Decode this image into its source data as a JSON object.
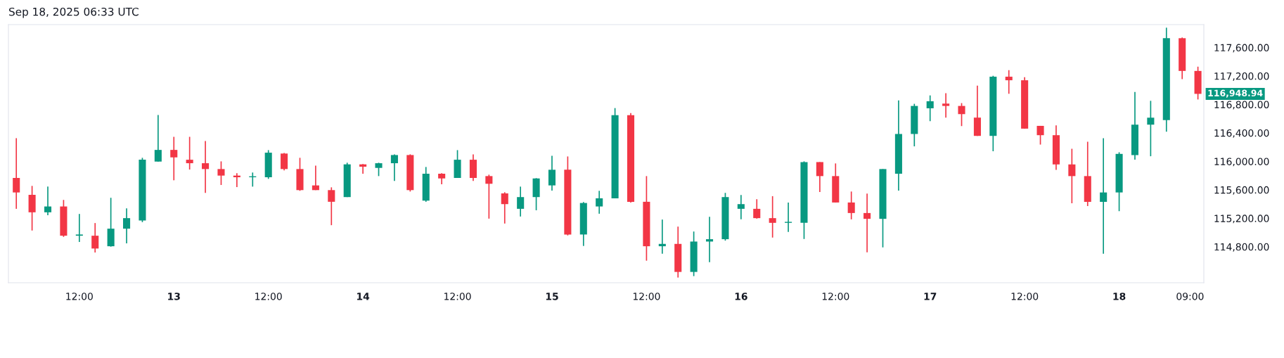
{
  "chart_data": {
    "type": "candlestick",
    "title": "Sep 18, 2025 06:33 UTC",
    "x": [
      "2025-09-12T04:00",
      "2025-09-12T06:00",
      "2025-09-12T08:00",
      "2025-09-12T10:00",
      "2025-09-12T12:00",
      "2025-09-12T14:00",
      "2025-09-12T16:00",
      "2025-09-12T18:00",
      "2025-09-12T20:00",
      "2025-09-12T22:00",
      "2025-09-13T00:00",
      "2025-09-13T02:00",
      "2025-09-13T04:00",
      "2025-09-13T06:00",
      "2025-09-13T08:00",
      "2025-09-13T10:00",
      "2025-09-13T12:00",
      "2025-09-13T14:00",
      "2025-09-13T16:00",
      "2025-09-13T18:00",
      "2025-09-13T20:00",
      "2025-09-13T22:00",
      "2025-09-14T00:00",
      "2025-09-14T02:00",
      "2025-09-14T04:00",
      "2025-09-14T06:00",
      "2025-09-14T08:00",
      "2025-09-14T10:00",
      "2025-09-14T12:00",
      "2025-09-14T14:00",
      "2025-09-14T16:00",
      "2025-09-14T18:00",
      "2025-09-14T20:00",
      "2025-09-14T22:00",
      "2025-09-15T00:00",
      "2025-09-15T02:00",
      "2025-09-15T04:00",
      "2025-09-15T06:00",
      "2025-09-15T08:00",
      "2025-09-15T10:00",
      "2025-09-15T12:00",
      "2025-09-15T14:00",
      "2025-09-15T16:00",
      "2025-09-15T18:00",
      "2025-09-15T20:00",
      "2025-09-15T22:00",
      "2025-09-16T00:00",
      "2025-09-16T02:00",
      "2025-09-16T04:00",
      "2025-09-16T06:00",
      "2025-09-16T08:00",
      "2025-09-16T10:00",
      "2025-09-16T12:00",
      "2025-09-16T14:00",
      "2025-09-16T16:00",
      "2025-09-16T18:00",
      "2025-09-16T20:00",
      "2025-09-16T22:00",
      "2025-09-17T00:00",
      "2025-09-17T02:00",
      "2025-09-17T04:00",
      "2025-09-17T06:00",
      "2025-09-17T08:00",
      "2025-09-17T10:00",
      "2025-09-17T12:00",
      "2025-09-17T14:00",
      "2025-09-17T16:00",
      "2025-09-17T18:00",
      "2025-09-17T20:00",
      "2025-09-17T22:00",
      "2025-09-18T00:00",
      "2025-09-18T02:00",
      "2025-09-18T04:00",
      "2025-09-18T06:00",
      "2025-09-18T08:00",
      "2025-09-18T10:00"
    ],
    "ohlc": [
      [
        115767,
        116326,
        115333,
        115563
      ],
      [
        115530,
        115655,
        115028,
        115284
      ],
      [
        115284,
        115645,
        115244,
        115366
      ],
      [
        115366,
        115458,
        114939,
        114955
      ],
      [
        114955,
        115261,
        114867,
        114972
      ],
      [
        114955,
        115133,
        114719,
        114775
      ],
      [
        114807,
        115488,
        114801,
        115054
      ],
      [
        115054,
        115340,
        114847,
        115202
      ],
      [
        115169,
        116050,
        115146,
        116023
      ],
      [
        115997,
        116651,
        115997,
        116161
      ],
      [
        116161,
        116345,
        115734,
        116056
      ],
      [
        116023,
        116345,
        115885,
        115974
      ],
      [
        115974,
        116286,
        115557,
        115892
      ],
      [
        115892,
        116000,
        115668,
        115800
      ],
      [
        115800,
        115833,
        115639,
        115777
      ],
      [
        115777,
        115843,
        115645,
        115790
      ],
      [
        115777,
        116158,
        115754,
        116122
      ],
      [
        116110,
        116119,
        115872,
        115892
      ],
      [
        115892,
        116050,
        115586,
        115596
      ],
      [
        115662,
        115941,
        115596,
        115596
      ],
      [
        115596,
        115635,
        115103,
        115432
      ],
      [
        115498,
        115981,
        115498,
        115958
      ],
      [
        115958,
        115961,
        115826,
        115925
      ],
      [
        115908,
        115981,
        115793,
        115974
      ],
      [
        115974,
        116099,
        115724,
        116089
      ],
      [
        116089,
        116099,
        115576,
        115596
      ],
      [
        115448,
        115921,
        115432,
        115826
      ],
      [
        115826,
        115833,
        115678,
        115760
      ],
      [
        115767,
        116158,
        115767,
        116023
      ],
      [
        116023,
        116099,
        115724,
        115767
      ],
      [
        115793,
        115813,
        115195,
        115685
      ],
      [
        115550,
        115566,
        115126,
        115399
      ],
      [
        115333,
        115645,
        115225,
        115498
      ],
      [
        115498,
        115764,
        115313,
        115760
      ],
      [
        115662,
        116079,
        115589,
        115882
      ],
      [
        115882,
        116069,
        114959,
        114972
      ],
      [
        114972,
        115428,
        114811,
        115415
      ],
      [
        115366,
        115586,
        115264,
        115481
      ],
      [
        115481,
        116749,
        115481,
        116648
      ],
      [
        116648,
        116680,
        115422,
        115432
      ],
      [
        115432,
        115793,
        114604,
        114807
      ],
      [
        114807,
        115182,
        114702,
        114840
      ],
      [
        114840,
        115083,
        114367,
        114446
      ],
      [
        114446,
        115014,
        114387,
        114873
      ],
      [
        114873,
        115221,
        114584,
        114906
      ],
      [
        114906,
        115557,
        114886,
        115498
      ],
      [
        115333,
        115527,
        115185,
        115399
      ],
      [
        115333,
        115468,
        115195,
        115202
      ],
      [
        115202,
        115511,
        114929,
        115136
      ],
      [
        115136,
        115422,
        115008,
        115150
      ],
      [
        115136,
        116000,
        114909,
        115990
      ],
      [
        115990,
        115990,
        115570,
        115793
      ],
      [
        115793,
        115971,
        115422,
        115422
      ],
      [
        115422,
        115576,
        115185,
        115274
      ],
      [
        115274,
        115547,
        114722,
        115192
      ],
      [
        115192,
        115892,
        114791,
        115892
      ],
      [
        115826,
        116858,
        115590,
        116385
      ],
      [
        116385,
        116809,
        116211,
        116779
      ],
      [
        116746,
        116927,
        116565,
        116845
      ],
      [
        116812,
        116957,
        116615,
        116779
      ],
      [
        116779,
        116819,
        116496,
        116664
      ],
      [
        116615,
        117065,
        116358,
        116358
      ],
      [
        116358,
        117203,
        116142,
        117190
      ],
      [
        117190,
        117282,
        116950,
        117140
      ],
      [
        117140,
        117183,
        116460,
        116460
      ],
      [
        116499,
        116499,
        116236,
        116368
      ],
      [
        116368,
        116506,
        115881,
        115957
      ],
      [
        115957,
        116177,
        115411,
        115793
      ],
      [
        115793,
        116276,
        115372,
        115431
      ],
      [
        115431,
        116325,
        114702,
        115563
      ],
      [
        115563,
        116128,
        115300,
        116105
      ],
      [
        116088,
        116976,
        116023,
        116516
      ],
      [
        116516,
        116851,
        116072,
        116614
      ],
      [
        116581,
        117879,
        116417,
        117731
      ],
      [
        117731,
        117741,
        117156,
        117271
      ],
      [
        117271,
        117331,
        116870,
        116948.94
      ]
    ],
    "colors": [
      "#f23645",
      "#f23645",
      "#089981",
      "#f23645",
      "#089981",
      "#f23645",
      "#089981",
      "#089981",
      "#089981",
      "#089981",
      "#f23645",
      "#f23645",
      "#f23645",
      "#f23645",
      "#f23645",
      "#089981",
      "#089981",
      "#f23645",
      "#f23645",
      "#f23645",
      "#f23645",
      "#089981",
      "#f23645",
      "#089981",
      "#089981",
      "#f23645",
      "#089981",
      "#f23645",
      "#089981",
      "#f23645",
      "#f23645",
      "#f23645",
      "#089981",
      "#089981",
      "#089981",
      "#f23645",
      "#089981",
      "#089981",
      "#089981",
      "#f23645",
      "#f23645",
      "#089981",
      "#f23645",
      "#089981",
      "#089981",
      "#089981",
      "#089981",
      "#f23645",
      "#f23645",
      "#089981",
      "#089981",
      "#f23645",
      "#f23645",
      "#f23645",
      "#f23645",
      "#089981",
      "#089981",
      "#089981",
      "#089981",
      "#f23645",
      "#f23645",
      "#f23645",
      "#089981",
      "#f23645",
      "#f23645",
      "#f23645",
      "#f23645",
      "#f23645",
      "#f23645",
      "#089981",
      "#089981",
      "#089981",
      "#089981",
      "#089981",
      "#f23645",
      "#f23645"
    ],
    "xlim": [
      "2025-09-12T03:00",
      "2025-09-18T10:45"
    ],
    "xticks": [
      {
        "value": "2025-09-12T12:00",
        "label": "12:00"
      },
      {
        "value": "2025-09-13T00:00",
        "label": "13"
      },
      {
        "value": "2025-09-13T12:00",
        "label": "12:00"
      },
      {
        "value": "2025-09-14T00:00",
        "label": "14"
      },
      {
        "value": "2025-09-14T12:00",
        "label": "12:00"
      },
      {
        "value": "2025-09-15T00:00",
        "label": "15"
      },
      {
        "value": "2025-09-15T12:00",
        "label": "12:00"
      },
      {
        "value": "2025-09-16T00:00",
        "label": "16"
      },
      {
        "value": "2025-09-16T12:00",
        "label": "12:00"
      },
      {
        "value": "2025-09-17T00:00",
        "label": "17"
      },
      {
        "value": "2025-09-17T12:00",
        "label": "12:00"
      },
      {
        "value": "2025-09-18T00:00",
        "label": "18"
      },
      {
        "value": "2025-09-18T09:00",
        "label": "09:00"
      }
    ],
    "ylim": [
      114294,
      117922
    ],
    "yticks": [
      {
        "value": 114800,
        "label": "114,800.00"
      },
      {
        "value": 115200,
        "label": "115,200.00"
      },
      {
        "value": 115600,
        "label": "115,600.00"
      },
      {
        "value": 116000,
        "label": "116,000.00"
      },
      {
        "value": 116400,
        "label": "116,400.00"
      },
      {
        "value": 116800,
        "label": "116,800.00"
      },
      {
        "value": 117200,
        "label": "117,200.00"
      },
      {
        "value": 117600,
        "label": "117,600.00"
      }
    ],
    "annotations": [
      {
        "text": "116,948.94",
        "x": "2025-09-18T10:00",
        "y": 116948.94
      }
    ],
    "grid": false
  }
}
